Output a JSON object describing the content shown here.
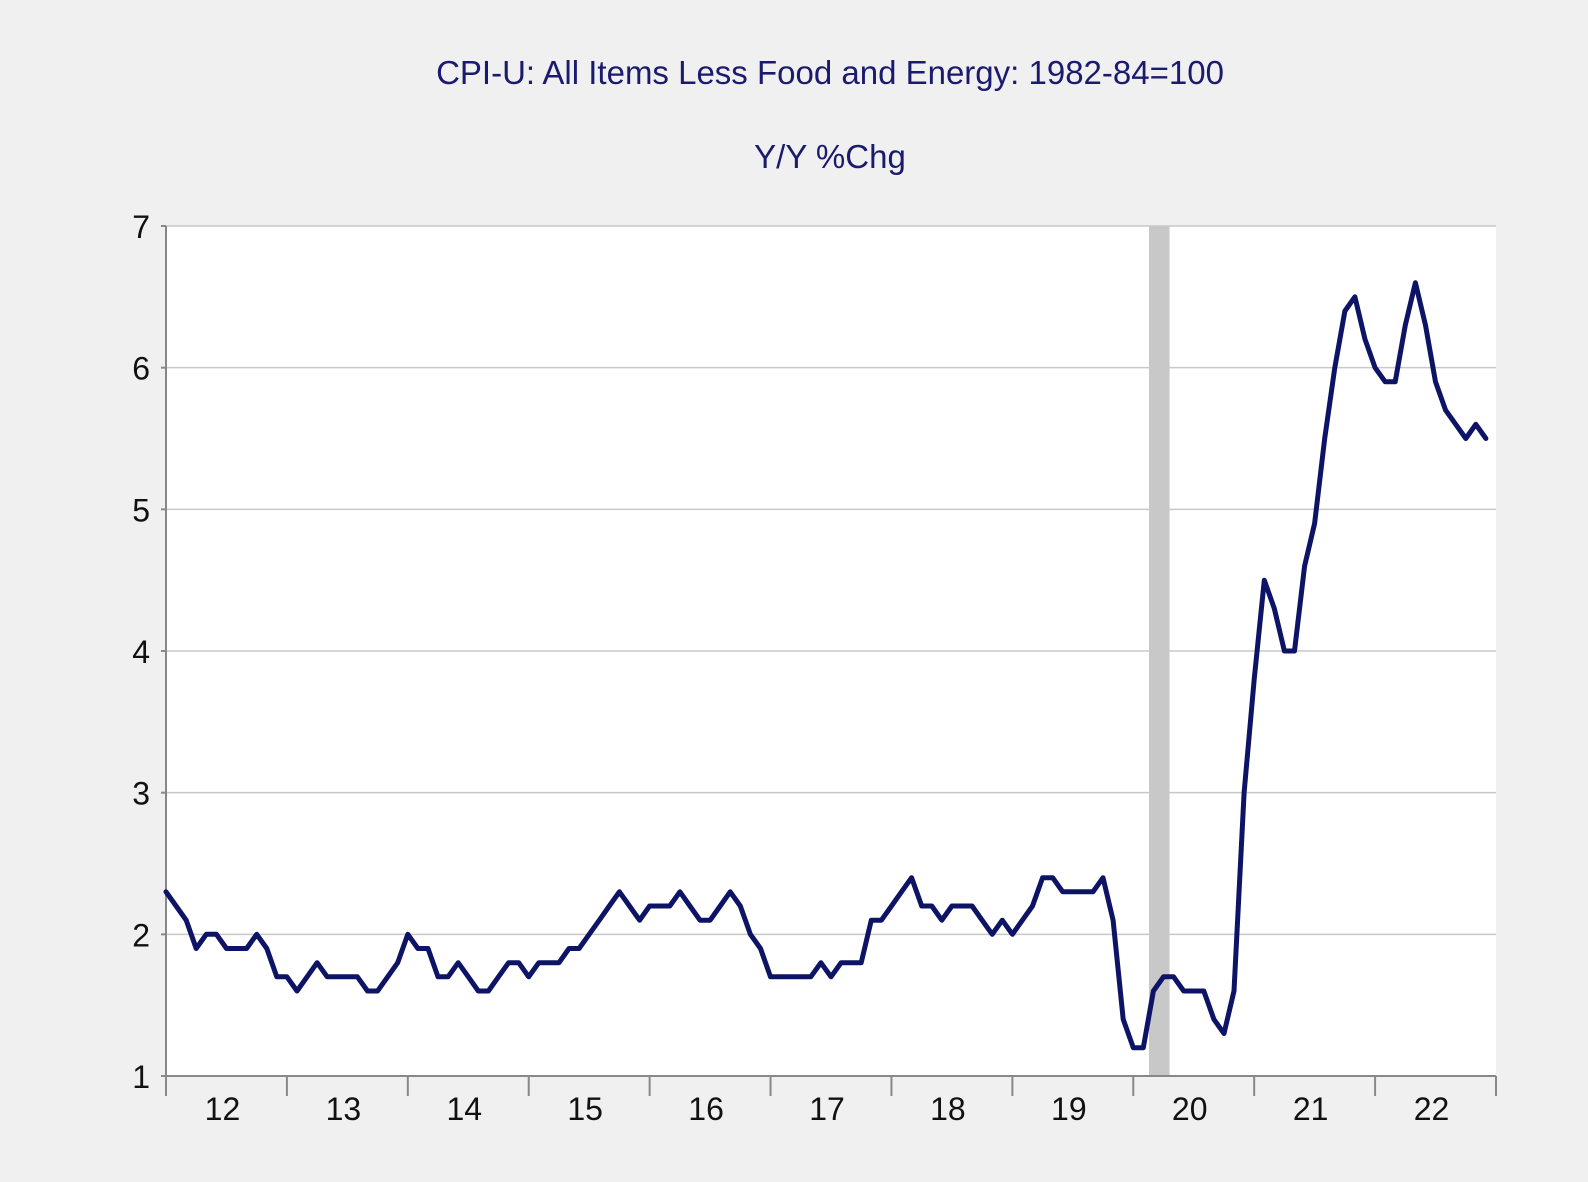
{
  "chart_data": {
    "type": "line",
    "title": "CPI-U: All Items Less Food and Energy: 1982-84=100",
    "subtitle": "Y/Y %Chg",
    "xlabel": "",
    "ylabel": "",
    "ylim": [
      1,
      7
    ],
    "yticks": [
      1,
      2,
      3,
      4,
      5,
      6,
      7
    ],
    "xlim": [
      2012.0,
      2023.0
    ],
    "xtick_labels": [
      "12",
      "13",
      "14",
      "15",
      "16",
      "17",
      "18",
      "19",
      "20",
      "21",
      "22"
    ],
    "recession_shading": {
      "start": 2020.13,
      "end": 2020.3
    },
    "colors": {
      "series": "#0d1466",
      "recession": "#c8c8c8",
      "grid": "#c8c8c8",
      "plot_bg": "#ffffff",
      "page_bg": "#f0f0f0",
      "title": "#1a1a6e"
    },
    "grid": true,
    "series": [
      {
        "name": "CPI-U: All Items Less Food and Energy Y/Y %Chg",
        "start": "2012-01",
        "frequency": "monthly",
        "values": [
          2.3,
          2.2,
          2.1,
          1.9,
          2.0,
          2.0,
          1.9,
          1.9,
          1.9,
          2.0,
          1.9,
          1.7,
          1.7,
          1.6,
          1.7,
          1.8,
          1.7,
          1.7,
          1.7,
          1.7,
          1.6,
          1.6,
          1.7,
          1.8,
          2.0,
          1.9,
          1.9,
          1.7,
          1.7,
          1.8,
          1.7,
          1.6,
          1.6,
          1.7,
          1.8,
          1.8,
          1.7,
          1.8,
          1.8,
          1.8,
          1.9,
          1.9,
          2.0,
          2.1,
          2.2,
          2.3,
          2.2,
          2.1,
          2.2,
          2.2,
          2.2,
          2.3,
          2.2,
          2.1,
          2.1,
          2.2,
          2.3,
          2.2,
          2.0,
          1.9,
          1.7,
          1.7,
          1.7,
          1.7,
          1.7,
          1.8,
          1.7,
          1.8,
          1.8,
          1.8,
          2.1,
          2.1,
          2.2,
          2.3,
          2.4,
          2.2,
          2.2,
          2.1,
          2.2,
          2.2,
          2.2,
          2.1,
          2.0,
          2.1,
          2.0,
          2.1,
          2.2,
          2.4,
          2.4,
          2.3,
          2.3,
          2.3,
          2.3,
          2.4,
          2.1,
          1.4,
          1.2,
          1.2,
          1.6,
          1.7,
          1.7,
          1.6,
          1.6,
          1.6,
          1.4,
          1.3,
          1.6,
          3.0,
          3.8,
          4.5,
          4.3,
          4.0,
          4.0,
          4.6,
          4.9,
          5.5,
          6.0,
          6.4,
          6.5,
          6.2,
          6.0,
          5.9,
          5.9,
          6.3,
          6.6,
          6.3,
          5.9,
          5.7,
          5.6,
          5.5,
          5.6,
          5.5
        ]
      }
    ]
  }
}
